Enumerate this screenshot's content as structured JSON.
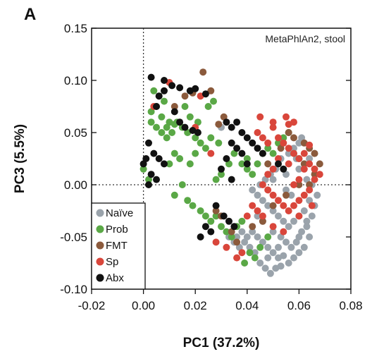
{
  "chart_data": {
    "type": "scatter",
    "panel_label": "A",
    "annotation": "MetaPhlAn2, stool",
    "xlabel": "PC1 (37.2%)",
    "ylabel": "PC3 (5.5%)",
    "xlim": [
      -0.02,
      0.08
    ],
    "ylim": [
      -0.1,
      0.15
    ],
    "x_ticks": [
      "-0.02",
      "0.00",
      "0.02",
      "0.04",
      "0.06",
      "0.08"
    ],
    "y_ticks": [
      "0.15",
      "0.10",
      "0.05",
      "0.00",
      "-0.05",
      "-0.10"
    ],
    "x_tick_values": [
      -0.02,
      0.0,
      0.02,
      0.04,
      0.06,
      0.08
    ],
    "y_tick_values": [
      0.15,
      0.1,
      0.05,
      0.0,
      -0.05,
      -0.1
    ],
    "reference_lines": {
      "x": 0.0,
      "y": 0.0,
      "style": "dotted"
    },
    "legend_position": "bottom-left",
    "series": [
      {
        "name": "Naïve",
        "color": "#9aa3ab",
        "points": [
          [
            0.046,
            -0.055
          ],
          [
            0.048,
            -0.06
          ],
          [
            0.05,
            -0.065
          ],
          [
            0.052,
            -0.07
          ],
          [
            0.054,
            -0.068
          ],
          [
            0.056,
            -0.075
          ],
          [
            0.058,
            -0.07
          ],
          [
            0.06,
            -0.065
          ],
          [
            0.062,
            -0.06
          ],
          [
            0.064,
            -0.05
          ],
          [
            0.044,
            -0.05
          ],
          [
            0.042,
            -0.045
          ],
          [
            0.04,
            -0.05
          ],
          [
            0.038,
            -0.045
          ],
          [
            0.036,
            -0.05
          ],
          [
            0.05,
            -0.045
          ],
          [
            0.053,
            -0.05
          ],
          [
            0.055,
            -0.055
          ],
          [
            0.057,
            -0.06
          ],
          [
            0.059,
            -0.055
          ],
          [
            0.061,
            -0.045
          ],
          [
            0.063,
            -0.035
          ],
          [
            0.065,
            -0.03
          ],
          [
            0.066,
            -0.02
          ],
          [
            0.064,
            -0.015
          ],
          [
            0.062,
            -0.025
          ],
          [
            0.06,
            -0.03
          ],
          [
            0.058,
            -0.035
          ],
          [
            0.056,
            -0.04
          ],
          [
            0.054,
            -0.035
          ],
          [
            0.052,
            -0.03
          ],
          [
            0.05,
            -0.025
          ],
          [
            0.048,
            -0.02
          ],
          [
            0.046,
            -0.015
          ],
          [
            0.044,
            -0.01
          ],
          [
            0.042,
            -0.005
          ],
          [
            0.045,
            0.0
          ],
          [
            0.05,
            0.005
          ],
          [
            0.055,
            0.01
          ],
          [
            0.06,
            0.015
          ],
          [
            0.062,
            0.02
          ],
          [
            0.064,
            0.025
          ],
          [
            0.066,
            0.03
          ],
          [
            0.058,
            0.035
          ],
          [
            0.06,
            0.04
          ],
          [
            0.056,
            0.03
          ],
          [
            0.053,
            0.025
          ],
          [
            0.051,
            0.015
          ],
          [
            0.049,
            0.01
          ],
          [
            0.047,
            0.005
          ],
          [
            0.043,
            -0.065
          ],
          [
            0.045,
            -0.075
          ],
          [
            0.047,
            -0.08
          ],
          [
            0.049,
            -0.085
          ],
          [
            0.051,
            -0.08
          ],
          [
            0.053,
            -0.078
          ],
          [
            0.041,
            -0.06
          ],
          [
            0.039,
            -0.055
          ],
          [
            0.037,
            -0.06
          ],
          [
            0.035,
            -0.055
          ],
          [
            0.033,
            -0.05
          ],
          [
            0.048,
            -0.07
          ],
          [
            0.052,
            -0.06
          ],
          [
            0.06,
            -0.05
          ],
          [
            0.063,
            -0.04
          ],
          [
            0.067,
            -0.01
          ],
          [
            0.065,
            0.0
          ],
          [
            0.063,
            0.005
          ],
          [
            0.057,
            -0.01
          ],
          [
            0.055,
            -0.005
          ],
          [
            0.03,
            0.055
          ],
          [
            0.061,
            0.045
          ],
          [
            0.059,
            0.025
          ],
          [
            0.046,
            -0.035
          ],
          [
            0.044,
            -0.03
          ]
        ]
      },
      {
        "name": "Prob",
        "color": "#5aa846",
        "points": [
          [
            0.004,
            0.09
          ],
          [
            0.006,
            0.085
          ],
          [
            0.008,
            0.08
          ],
          [
            0.005,
            0.075
          ],
          [
            0.003,
            0.07
          ],
          [
            0.007,
            0.065
          ],
          [
            0.01,
            0.06
          ],
          [
            0.012,
            0.058
          ],
          [
            0.009,
            0.055
          ],
          [
            0.011,
            0.05
          ],
          [
            0.013,
            0.06
          ],
          [
            0.015,
            0.055
          ],
          [
            0.017,
            0.05
          ],
          [
            0.02,
            0.045
          ],
          [
            0.003,
            0.06
          ],
          [
            0.005,
            0.055
          ],
          [
            0.007,
            0.05
          ],
          [
            0.009,
            0.045
          ],
          [
            0.018,
            0.065
          ],
          [
            0.021,
            0.06
          ],
          [
            0.022,
            0.04
          ],
          [
            0.024,
            0.035
          ],
          [
            0.02,
            0.03
          ],
          [
            0.018,
            0.02
          ],
          [
            0.015,
            0.0
          ],
          [
            0.012,
            -0.01
          ],
          [
            0.017,
            -0.015
          ],
          [
            0.019,
            -0.02
          ],
          [
            0.022,
            -0.025
          ],
          [
            0.024,
            -0.03
          ],
          [
            0.026,
            -0.035
          ],
          [
            0.028,
            -0.03
          ],
          [
            0.03,
            -0.04
          ],
          [
            0.032,
            -0.045
          ],
          [
            0.034,
            -0.05
          ],
          [
            0.036,
            -0.04
          ],
          [
            0.038,
            -0.035
          ],
          [
            0.01,
            0.02
          ],
          [
            0.012,
            0.03
          ],
          [
            0.014,
            0.025
          ],
          [
            0.025,
            0.075
          ],
          [
            0.027,
            0.08
          ],
          [
            0.016,
            0.075
          ],
          [
            0.038,
            0.02
          ],
          [
            0.04,
            0.015
          ],
          [
            0.042,
            0.01
          ],
          [
            0.044,
            0.02
          ],
          [
            0.04,
            0.025
          ],
          [
            0.046,
            0.03
          ],
          [
            0.048,
            0.035
          ],
          [
            0.05,
            0.03
          ],
          [
            0.052,
            0.04
          ],
          [
            0.054,
            0.045
          ],
          [
            0.056,
            0.05
          ],
          [
            0.058,
            0.03
          ],
          [
            0.06,
            0.025
          ],
          [
            0.035,
            0.03
          ],
          [
            0.033,
            0.02
          ],
          [
            0.03,
            0.01
          ],
          [
            0.028,
            0.005
          ],
          [
            0.045,
            -0.06
          ],
          [
            0.043,
            -0.07
          ],
          [
            0.041,
            -0.065
          ],
          [
            0.039,
            -0.075
          ],
          [
            0.048,
            -0.05
          ],
          [
            0.0,
            0.015
          ],
          [
            0.002,
            0.005
          ],
          [
            0.026,
            0.045
          ],
          [
            0.029,
            0.04
          ]
        ]
      },
      {
        "name": "FMT",
        "color": "#8b5a3c",
        "points": [
          [
            0.023,
            0.108
          ],
          [
            0.026,
            0.09
          ],
          [
            0.019,
            0.088
          ],
          [
            0.031,
            0.065
          ],
          [
            0.029,
            0.058
          ],
          [
            0.056,
            0.05
          ],
          [
            0.058,
            0.045
          ],
          [
            0.062,
            0.04
          ],
          [
            0.064,
            0.035
          ],
          [
            0.066,
            0.03
          ],
          [
            0.068,
            0.02
          ],
          [
            0.066,
            0.01
          ],
          [
            0.06,
            0.0
          ],
          [
            0.055,
            -0.01
          ],
          [
            0.05,
            -0.02
          ],
          [
            0.046,
            -0.035
          ],
          [
            0.042,
            -0.04
          ],
          [
            0.036,
            -0.055
          ],
          [
            0.03,
            -0.03
          ],
          [
            0.028,
            -0.025
          ],
          [
            0.034,
            -0.045
          ],
          [
            0.048,
            0.02
          ],
          [
            0.053,
            0.035
          ],
          [
            0.062,
            0.02
          ],
          [
            0.064,
            0.0
          ],
          [
            0.016,
            0.085
          ],
          [
            0.012,
            0.075
          ]
        ]
      },
      {
        "name": "Sp",
        "color": "#d9463b",
        "points": [
          [
            0.01,
            0.098
          ],
          [
            0.022,
            0.085
          ],
          [
            0.004,
            0.075
          ],
          [
            0.02,
            0.055
          ],
          [
            0.05,
            0.06
          ],
          [
            0.055,
            0.065
          ],
          [
            0.058,
            0.06
          ],
          [
            0.05,
            0.055
          ],
          [
            0.052,
            0.045
          ],
          [
            0.054,
            0.04
          ],
          [
            0.056,
            0.035
          ],
          [
            0.058,
            0.03
          ],
          [
            0.06,
            0.025
          ],
          [
            0.062,
            0.015
          ],
          [
            0.064,
            0.02
          ],
          [
            0.066,
            0.015
          ],
          [
            0.068,
            0.01
          ],
          [
            0.066,
            0.005
          ],
          [
            0.064,
            -0.005
          ],
          [
            0.062,
            -0.01
          ],
          [
            0.06,
            -0.015
          ],
          [
            0.058,
            -0.02
          ],
          [
            0.056,
            -0.025
          ],
          [
            0.054,
            -0.02
          ],
          [
            0.052,
            -0.015
          ],
          [
            0.05,
            -0.01
          ],
          [
            0.048,
            -0.005
          ],
          [
            0.046,
            0.0
          ],
          [
            0.048,
            0.01
          ],
          [
            0.05,
            0.015
          ],
          [
            0.046,
            0.045
          ],
          [
            0.044,
            0.05
          ],
          [
            0.048,
            0.04
          ],
          [
            0.052,
            0.025
          ],
          [
            0.056,
            0.02
          ],
          [
            0.058,
            0.0
          ],
          [
            0.06,
            0.005
          ],
          [
            0.062,
            0.03
          ],
          [
            0.064,
            0.038
          ],
          [
            0.044,
            -0.025
          ],
          [
            0.042,
            -0.02
          ],
          [
            0.04,
            -0.03
          ],
          [
            0.038,
            -0.065
          ],
          [
            0.036,
            -0.07
          ],
          [
            0.046,
            -0.03
          ],
          [
            0.05,
            -0.04
          ],
          [
            0.054,
            -0.045
          ],
          [
            0.032,
            -0.06
          ],
          [
            0.028,
            -0.055
          ],
          [
            0.06,
            -0.03
          ],
          [
            0.065,
            -0.02
          ],
          [
            0.026,
            0.03
          ],
          [
            0.045,
            0.065
          ],
          [
            0.056,
            0.058
          ]
        ]
      },
      {
        "name": "Abx",
        "color": "#111111",
        "points": [
          [
            0.003,
            0.103
          ],
          [
            0.008,
            0.1
          ],
          [
            0.011,
            0.095
          ],
          [
            0.014,
            0.093
          ],
          [
            0.018,
            0.09
          ],
          [
            0.02,
            0.092
          ],
          [
            0.024,
            0.087
          ],
          [
            0.008,
            0.09
          ],
          [
            0.006,
            0.085
          ],
          [
            0.005,
            0.075
          ],
          [
            0.012,
            0.07
          ],
          [
            0.014,
            0.06
          ],
          [
            0.016,
            0.055
          ],
          [
            0.019,
            0.052
          ],
          [
            0.021,
            0.05
          ],
          [
            0.002,
            0.04
          ],
          [
            0.004,
            0.03
          ],
          [
            0.006,
            0.025
          ],
          [
            0.008,
            0.02
          ],
          [
            0.001,
            0.025
          ],
          [
            0.0,
            0.02
          ],
          [
            0.003,
            0.01
          ],
          [
            0.005,
            0.005
          ],
          [
            0.002,
            0.0
          ],
          [
            0.032,
            0.06
          ],
          [
            0.034,
            0.055
          ],
          [
            0.036,
            0.06
          ],
          [
            0.038,
            0.05
          ],
          [
            0.04,
            0.045
          ],
          [
            0.042,
            0.04
          ],
          [
            0.044,
            0.035
          ],
          [
            0.046,
            0.03
          ],
          [
            0.034,
            0.04
          ],
          [
            0.036,
            0.035
          ],
          [
            0.038,
            0.03
          ],
          [
            0.04,
            0.02
          ],
          [
            0.032,
            0.025
          ],
          [
            0.03,
            0.015
          ],
          [
            0.034,
            0.005
          ],
          [
            0.028,
            -0.02
          ],
          [
            0.031,
            -0.03
          ],
          [
            0.033,
            -0.035
          ],
          [
            0.035,
            -0.04
          ],
          [
            0.026,
            -0.045
          ],
          [
            0.024,
            -0.04
          ],
          [
            0.022,
            -0.05
          ],
          [
            0.052,
            0.02
          ],
          [
            0.054,
            0.015
          ]
        ]
      }
    ]
  }
}
